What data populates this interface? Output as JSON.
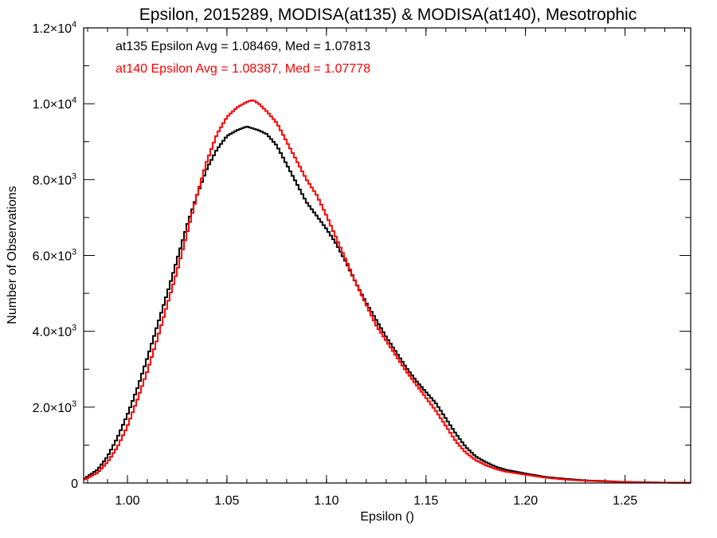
{
  "chart_data": {
    "type": "line",
    "title": "Epsilon, 2015289, MODISA(at135) & MODISA(at140), Mesotrophic",
    "xlabel": "Epsilon ()",
    "ylabel": "Number of Observations",
    "xlim": [
      0.978,
      1.283
    ],
    "ylim": [
      0,
      12000
    ],
    "x_ticks": [
      {
        "value": 1.0,
        "label": "1.00"
      },
      {
        "value": 1.05,
        "label": "1.05"
      },
      {
        "value": 1.1,
        "label": "1.10"
      },
      {
        "value": 1.15,
        "label": "1.15"
      },
      {
        "value": 1.2,
        "label": "1.20"
      },
      {
        "value": 1.25,
        "label": "1.25"
      }
    ],
    "y_ticks": [
      {
        "value": 0,
        "mantissa": "0",
        "exp": ""
      },
      {
        "value": 2000,
        "mantissa": "2.0×10",
        "exp": "3"
      },
      {
        "value": 4000,
        "mantissa": "4.0×10",
        "exp": "3"
      },
      {
        "value": 6000,
        "mantissa": "6.0×10",
        "exp": "3"
      },
      {
        "value": 8000,
        "mantissa": "8.0×10",
        "exp": "3"
      },
      {
        "value": 10000,
        "mantissa": "1.0×10",
        "exp": "4"
      },
      {
        "value": 12000,
        "mantissa": "1.2×10",
        "exp": "4"
      }
    ],
    "grid": false,
    "annotations": [
      {
        "text": "at135 Epsilon Avg = 1.08469, Med = 1.07813",
        "color": "#000000"
      },
      {
        "text": "at140 Epsilon Avg = 1.08387, Med = 1.07778",
        "color": "#ff0000"
      }
    ],
    "series": [
      {
        "color": "#000000",
        "x": [
          0.978,
          0.985,
          0.99,
          0.995,
          1.0,
          1.005,
          1.01,
          1.015,
          1.02,
          1.025,
          1.03,
          1.035,
          1.04,
          1.045,
          1.05,
          1.055,
          1.06,
          1.063,
          1.066,
          1.07,
          1.075,
          1.08,
          1.085,
          1.09,
          1.095,
          1.1,
          1.105,
          1.11,
          1.115,
          1.12,
          1.125,
          1.13,
          1.135,
          1.14,
          1.145,
          1.15,
          1.155,
          1.16,
          1.165,
          1.17,
          1.175,
          1.18,
          1.185,
          1.19,
          1.2,
          1.21,
          1.22,
          1.23,
          1.24,
          1.25,
          1.26,
          1.27,
          1.283
        ],
        "y": [
          100,
          350,
          700,
          1200,
          1800,
          2500,
          3300,
          4150,
          5000,
          5900,
          6800,
          7600,
          8300,
          8800,
          9150,
          9300,
          9400,
          9350,
          9300,
          9200,
          8900,
          8400,
          7900,
          7400,
          7050,
          6700,
          6300,
          5800,
          5250,
          4750,
          4300,
          3850,
          3450,
          3050,
          2700,
          2400,
          2100,
          1700,
          1300,
          950,
          700,
          550,
          430,
          350,
          250,
          160,
          110,
          70,
          50,
          30,
          20,
          10,
          5
        ]
      },
      {
        "color": "#ff0000",
        "x": [
          0.978,
          0.985,
          0.99,
          0.995,
          1.0,
          1.005,
          1.01,
          1.015,
          1.02,
          1.025,
          1.03,
          1.035,
          1.04,
          1.045,
          1.05,
          1.055,
          1.06,
          1.063,
          1.066,
          1.07,
          1.075,
          1.08,
          1.085,
          1.09,
          1.095,
          1.1,
          1.105,
          1.11,
          1.115,
          1.12,
          1.125,
          1.13,
          1.135,
          1.14,
          1.145,
          1.15,
          1.155,
          1.16,
          1.165,
          1.17,
          1.175,
          1.18,
          1.185,
          1.19,
          1.2,
          1.21,
          1.22,
          1.23,
          1.24,
          1.25,
          1.26,
          1.27,
          1.283
        ],
        "y": [
          80,
          270,
          550,
          950,
          1500,
          2200,
          2950,
          3800,
          4700,
          5600,
          6600,
          7600,
          8500,
          9200,
          9650,
          9900,
          10050,
          10100,
          10000,
          9800,
          9500,
          9000,
          8500,
          8000,
          7600,
          7050,
          6450,
          5850,
          5250,
          4700,
          4150,
          3750,
          3350,
          2950,
          2600,
          2250,
          1900,
          1500,
          1100,
          800,
          600,
          470,
          370,
          300,
          220,
          140,
          90,
          60,
          40,
          25,
          15,
          10,
          5
        ]
      }
    ]
  }
}
